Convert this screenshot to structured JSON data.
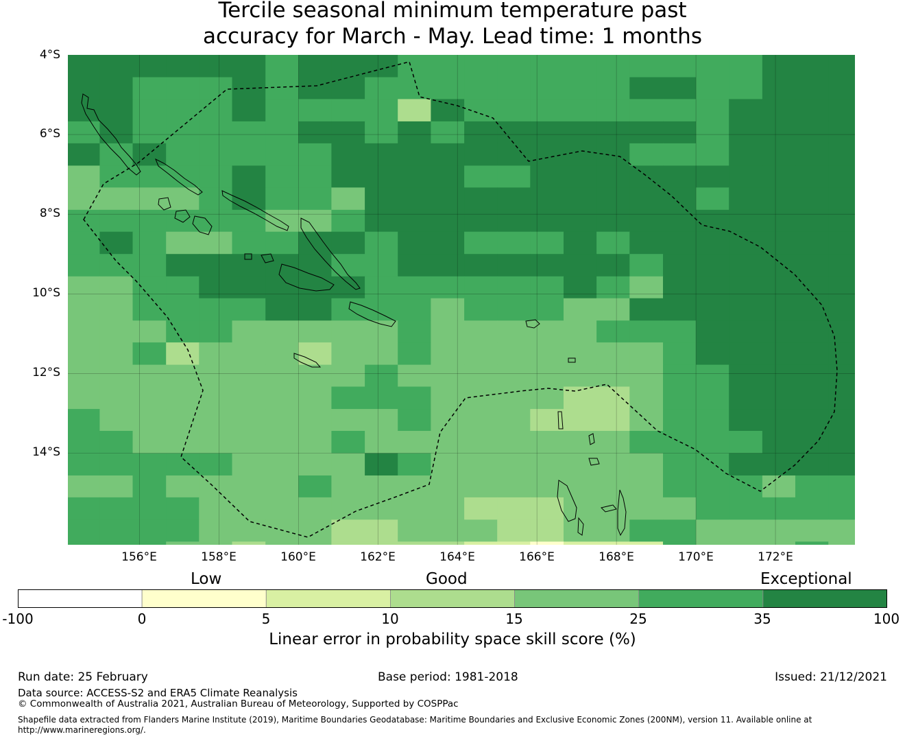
{
  "title": {
    "line1": "Tercile seasonal minimum temperature past",
    "line2": "accuracy for March - May. Lead time: 1 months"
  },
  "map": {
    "lat_labels": [
      "4°S",
      "6°S",
      "8°S",
      "10°S",
      "12°S",
      "14°S"
    ],
    "lon_labels": [
      "156°E",
      "158°E",
      "160°E",
      "162°E",
      "164°E",
      "166°E",
      "168°E",
      "170°E",
      "172°E"
    ],
    "lon_range": [
      154.2,
      174.0
    ],
    "lat_range": [
      -4.0,
      -16.3
    ],
    "grid_lons": [
      155.0,
      155.83,
      156.67,
      157.5,
      158.33,
      159.17,
      160.0,
      160.83,
      161.67,
      162.5,
      163.33,
      164.17,
      165.0,
      165.83,
      166.67,
      167.5,
      168.33,
      169.17,
      170.0,
      170.83,
      171.67,
      172.5,
      173.33,
      174.17
    ],
    "grid_lats": [
      -4.0,
      -4.56,
      -5.11,
      -5.67,
      -6.22,
      -6.78,
      -7.33,
      -7.89,
      -8.44,
      -9.0,
      -9.56,
      -10.11,
      -10.67,
      -11.22,
      -11.78,
      -12.33,
      -12.89,
      -13.44,
      -14.0,
      -14.56,
      -15.11,
      -15.67,
      -16.22
    ],
    "cells": [
      "666666566655555555555666",
      "665556566555555556655666",
      "665556555536555555556666",
      "565555566565666666656666",
      "656555556666666665556666",
      "455556556666556666666666",
      "444456554666666666656666",
      "555555445666666666666666",
      "565445566566555656666666",
      "555666665566666665666666",
      "445566666555555654666666",
      "445555665554555446666666",
      "444554444454444455566666",
      "445344434454444444566666",
      "444444444544444444556666",
      "444444445554444334556666",
      "544444444454443334556666",
      "554444445444444445555666",
      "555554444654444444556666",
      "445444454444444444555455",
      "555544444444333444455555",
      "555544443344433445544444",
      "555443443333221222544454"
    ],
    "palette": [
      "#ffffff",
      "#ffffcc",
      "#d9f0a3",
      "#addd8e",
      "#78c679",
      "#41ab5d",
      "#238443"
    ]
  },
  "category_labels": {
    "low": "Low",
    "good": "Good",
    "exceptional": "Exceptional"
  },
  "colorbar": {
    "ticks": [
      "-100",
      "0",
      "5",
      "10",
      "15",
      "25",
      "35",
      "100"
    ],
    "colors": [
      "#ffffff",
      "#ffffcc",
      "#d9f0a3",
      "#addd8e",
      "#78c679",
      "#41ab5d",
      "#238443"
    ],
    "label": "Linear error in probability space skill score (%)"
  },
  "footer": {
    "run_date": "Run date: 25 February",
    "base_period": "Base period: 1981-2018",
    "issued": "Issued: 21/12/2021",
    "data_source": "Data source: ACCESS-S2 and ERA5 Climate Reanalysis",
    "copyright": "© Commonwealth of Australia 2021, Australian Bureau of Meteorology, Supported by COSPPac",
    "shapefile_line1": "Shapefile data extracted from Flanders Marine Institute (2019), Maritime Boundaries Geodatabase: Maritime Boundaries and Exclusive Economic Zones (200NM), version 11. Available online at",
    "shapefile_line2": "http://www.marineregions.org/."
  }
}
